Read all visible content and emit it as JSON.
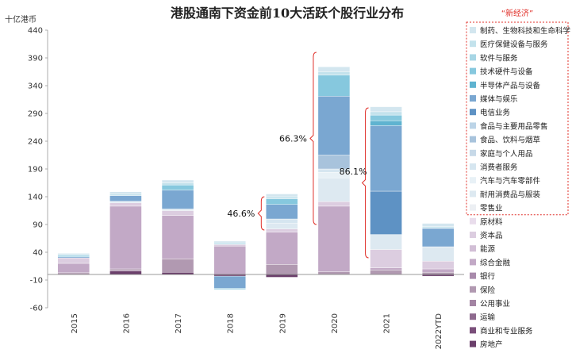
{
  "chart_data": {
    "type": "bar",
    "stacked": true,
    "title": "港股通南下资金前10大活跃个股行业分布",
    "ylabel": "十亿港币",
    "ylim": [
      -60,
      440
    ],
    "yticks": [
      -60,
      -10,
      40,
      90,
      140,
      190,
      240,
      290,
      340,
      390,
      440
    ],
    "categories": [
      "2015",
      "2016",
      "2017",
      "2018",
      "2019",
      "2020",
      "2021",
      "2022YTD"
    ],
    "legend_group_label": "“新经济”",
    "series": [
      {
        "name": "房地产",
        "color": "#6b3f6b",
        "values": [
          0,
          6,
          4,
          -3,
          -5,
          0,
          0,
          -3
        ],
        "group": "old"
      },
      {
        "name": "商业和专业服务",
        "color": "#7a4f7a",
        "values": [
          0,
          0,
          0,
          0,
          0,
          0,
          0,
          0
        ],
        "group": "old"
      },
      {
        "name": "运输",
        "color": "#8e6a8e",
        "values": [
          0,
          0,
          0,
          0,
          0,
          0,
          0,
          0
        ],
        "group": "old"
      },
      {
        "name": "公用事业",
        "color": "#a384a3",
        "values": [
          0,
          0,
          0,
          0,
          0,
          0,
          0,
          0
        ],
        "group": "old"
      },
      {
        "name": "保险",
        "color": "#b199b1",
        "values": [
          3,
          4,
          24,
          0,
          18,
          5,
          8,
          4
        ],
        "group": "old"
      },
      {
        "name": "银行",
        "color": "#a88aab",
        "values": [
          0,
          0,
          0,
          0,
          0,
          0,
          0,
          0
        ],
        "group": "old"
      },
      {
        "name": "综合金融",
        "color": "#c2a9c6",
        "values": [
          17,
          113,
          78,
          51,
          58,
          118,
          4,
          6
        ],
        "group": "old"
      },
      {
        "name": "能源",
        "color": "#d2bfd6",
        "values": [
          0,
          0,
          0,
          0,
          0,
          0,
          0,
          0
        ],
        "group": "old"
      },
      {
        "name": "资本品",
        "color": "#dccde0",
        "values": [
          10,
          6,
          9,
          3,
          6,
          8,
          33,
          14
        ],
        "group": "old"
      },
      {
        "name": "原材料",
        "color": "#e9ddec",
        "values": [
          0,
          0,
          0,
          0,
          0,
          0,
          0,
          0
        ],
        "group": "old"
      },
      {
        "name": "零售业",
        "color": "#eceff3",
        "values": [
          0,
          0,
          0,
          0,
          0,
          0,
          0,
          0
        ],
        "group": "new"
      },
      {
        "name": "耐用消费品与服装",
        "color": "#dde9f1",
        "values": [
          0,
          3,
          3,
          0,
          10,
          43,
          27,
          26
        ],
        "group": "new"
      },
      {
        "name": "汽车与汽车零部件",
        "color": "#e8f1f6",
        "values": [
          0,
          0,
          0,
          0,
          0,
          10,
          0,
          0
        ],
        "group": "new"
      },
      {
        "name": "消费者服务",
        "color": "#d6e6f0",
        "values": [
          0,
          0,
          0,
          0,
          8,
          6,
          0,
          0
        ],
        "group": "new"
      },
      {
        "name": "家庭与个人用品",
        "color": "#c7d9e8",
        "values": [
          0,
          0,
          0,
          0,
          0,
          0,
          0,
          0
        ],
        "group": "new"
      },
      {
        "name": "食品、饮料与烟草",
        "color": "#a8c3dc",
        "values": [
          0,
          0,
          0,
          0,
          0,
          25,
          0,
          0
        ],
        "group": "new"
      },
      {
        "name": "食品与主要用品零售",
        "color": "#bcd4e7",
        "values": [
          0,
          0,
          0,
          0,
          0,
          0,
          0,
          0
        ],
        "group": "new"
      },
      {
        "name": "电信业务",
        "color": "#5e92c4",
        "values": [
          0,
          0,
          0,
          0,
          0,
          0,
          78,
          0
        ],
        "group": "new"
      },
      {
        "name": "媒体与娱乐",
        "color": "#7aa7d1",
        "values": [
          2,
          10,
          34,
          -22,
          26,
          106,
          118,
          33
        ],
        "group": "new"
      },
      {
        "name": "半导体产品与设备",
        "color": "#5fb3d0",
        "values": [
          0,
          0,
          0,
          0,
          0,
          0,
          9,
          0
        ],
        "group": "new"
      },
      {
        "name": "技术硬件与设备",
        "color": "#86c8de",
        "values": [
          2,
          0,
          9,
          -2,
          10,
          38,
          10,
          1
        ],
        "group": "new"
      },
      {
        "name": "软件与服务",
        "color": "#a7d6e5",
        "values": [
          0,
          0,
          0,
          0,
          0,
          0,
          0,
          0
        ],
        "group": "new"
      },
      {
        "name": "医疗保健设备与服务",
        "color": "#c3e2ec",
        "values": [
          2,
          3,
          4,
          3,
          4,
          6,
          6,
          2
        ],
        "group": "new"
      },
      {
        "name": "制药、生物科技和生命科学",
        "color": "#d3e6ef",
        "values": [
          2,
          4,
          5,
          3,
          5,
          9,
          9,
          6
        ],
        "group": "new"
      }
    ],
    "annotations": [
      {
        "text": "46.6%",
        "year": "2019"
      },
      {
        "text": "66.3%",
        "year": "2020"
      },
      {
        "text": "86.1%",
        "year": "2021"
      }
    ],
    "grid": false,
    "legend_position": "right"
  }
}
